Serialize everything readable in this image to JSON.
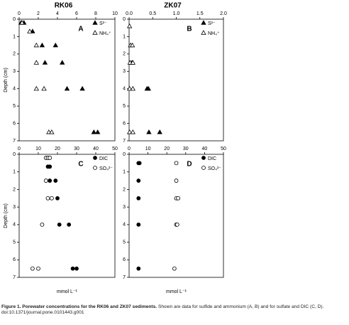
{
  "chart_data": [
    {
      "type": "scatter",
      "title": "RK06",
      "panel_label": "A",
      "y_label": "Depth (cm)",
      "xlim": [
        0,
        10
      ],
      "xticks": [
        0,
        2,
        4,
        6,
        8,
        10
      ],
      "ylim": [
        0,
        7
      ],
      "yticks": [
        0,
        1,
        2,
        3,
        4,
        5,
        6,
        7
      ],
      "y_inverted": true,
      "x_axis_position": "top",
      "series": [
        {
          "name": "S²⁻",
          "color": "#000000",
          "marker": "triangle",
          "filled": true,
          "x": [
            0.2,
            0.5,
            1.4,
            2.4,
            3.8,
            2.7,
            4.5,
            5.0,
            6.6,
            7.8,
            8.2
          ],
          "values": [
            0.2,
            0.2,
            0.7,
            1.5,
            1.5,
            2.5,
            2.5,
            4.0,
            4.0,
            6.5,
            6.5
          ]
        },
        {
          "name": "NH₄⁺",
          "color": "#000000",
          "marker": "triangle",
          "filled": false,
          "x": [
            0.3,
            1.1,
            1.8,
            1.8,
            1.8,
            2.6,
            3.1,
            3.4
          ],
          "values": [
            0.2,
            0.7,
            1.5,
            2.5,
            4.0,
            4.0,
            6.5,
            6.5
          ]
        }
      ]
    },
    {
      "type": "scatter",
      "title": "ZK07",
      "panel_label": "B",
      "xlim": [
        0,
        2
      ],
      "xticks": [
        {
          "value": 0,
          "label": "0.0"
        },
        {
          "value": 0.5,
          "label": "0.5"
        },
        {
          "value": 1,
          "label": "1.0"
        },
        {
          "value": 1.5,
          "label": "1.5"
        },
        {
          "value": 2,
          "label": "2.0"
        }
      ],
      "ylim": [
        0,
        7
      ],
      "yticks": [
        0,
        1,
        2,
        3,
        4,
        5,
        6,
        7
      ],
      "y_inverted": true,
      "x_axis_position": "top",
      "series": [
        {
          "name": "S²⁻",
          "color": "#000000",
          "marker": "triangle",
          "filled": true,
          "x": [
            0.06,
            0.38,
            0.41,
            0.42,
            0.65
          ],
          "values": [
            2.5,
            4.0,
            4.0,
            6.5,
            6.5
          ]
        },
        {
          "name": "NH₄⁺",
          "color": "#000000",
          "marker": "triangle",
          "filled": false,
          "x": [
            0.01,
            0.03,
            0.07,
            0.02,
            0.08,
            0.01,
            0.08,
            0.01,
            0.08
          ],
          "values": [
            0.4,
            1.5,
            1.5,
            2.5,
            2.5,
            4.0,
            4.0,
            6.5,
            6.5
          ]
        }
      ]
    },
    {
      "type": "scatter",
      "panel_label": "C",
      "y_label": "Depth (cm)",
      "x_label": "mmol L⁻¹",
      "xlim": [
        0,
        50
      ],
      "xticks": [
        0,
        10,
        20,
        30,
        40,
        50
      ],
      "ylim": [
        0,
        7
      ],
      "yticks": [
        0,
        1,
        2,
        3,
        4,
        5,
        6,
        7
      ],
      "y_inverted": true,
      "x_axis_position": "top",
      "series": [
        {
          "name": "DIC",
          "color": "#000000",
          "marker": "circle",
          "filled": true,
          "x": [
            15,
            16,
            16,
            19,
            20,
            21,
            26,
            28,
            30
          ],
          "values": [
            0.7,
            0.7,
            1.5,
            1.5,
            2.5,
            4.0,
            4.0,
            6.5,
            6.5
          ]
        },
        {
          "name": "SO₄²⁻",
          "color": "#000000",
          "marker": "circle",
          "filled": false,
          "x": [
            14,
            15,
            16,
            14,
            15,
            17,
            12,
            7,
            10
          ],
          "values": [
            0.2,
            0.2,
            0.2,
            1.5,
            2.5,
            2.5,
            4.0,
            6.5,
            6.5
          ]
        }
      ]
    },
    {
      "type": "scatter",
      "panel_label": "D",
      "x_label": "mmol L⁻¹",
      "xlim": [
        0,
        50
      ],
      "xticks": [
        0,
        10,
        20,
        30,
        40,
        50
      ],
      "ylim": [
        0,
        7
      ],
      "yticks": [
        0,
        1,
        2,
        3,
        4,
        5,
        6,
        7
      ],
      "y_inverted": true,
      "x_axis_position": "top",
      "series": [
        {
          "name": "DIC",
          "color": "#000000",
          "marker": "circle",
          "filled": true,
          "x": [
            5,
            5.5,
            5,
            5,
            5,
            5
          ],
          "values": [
            0.5,
            0.5,
            1.5,
            2.5,
            4.0,
            6.5
          ]
        },
        {
          "name": "SO₄²⁻",
          "color": "#000000",
          "marker": "circle",
          "filled": false,
          "x": [
            25,
            25,
            25,
            26,
            25,
            25.5,
            24
          ],
          "values": [
            0.5,
            1.5,
            2.5,
            2.5,
            4.0,
            4.0,
            6.5
          ]
        }
      ]
    }
  ],
  "caption": {
    "label": "Figure 1. Porewater concentrations for the RK06 and ZK07 sediments.",
    "text": "Shown are data for sulfide and ammonium (A, B) and for sulfate and DIC (C, D).",
    "doi": "doi:10.1371/journal.pone.0101443.g001"
  }
}
